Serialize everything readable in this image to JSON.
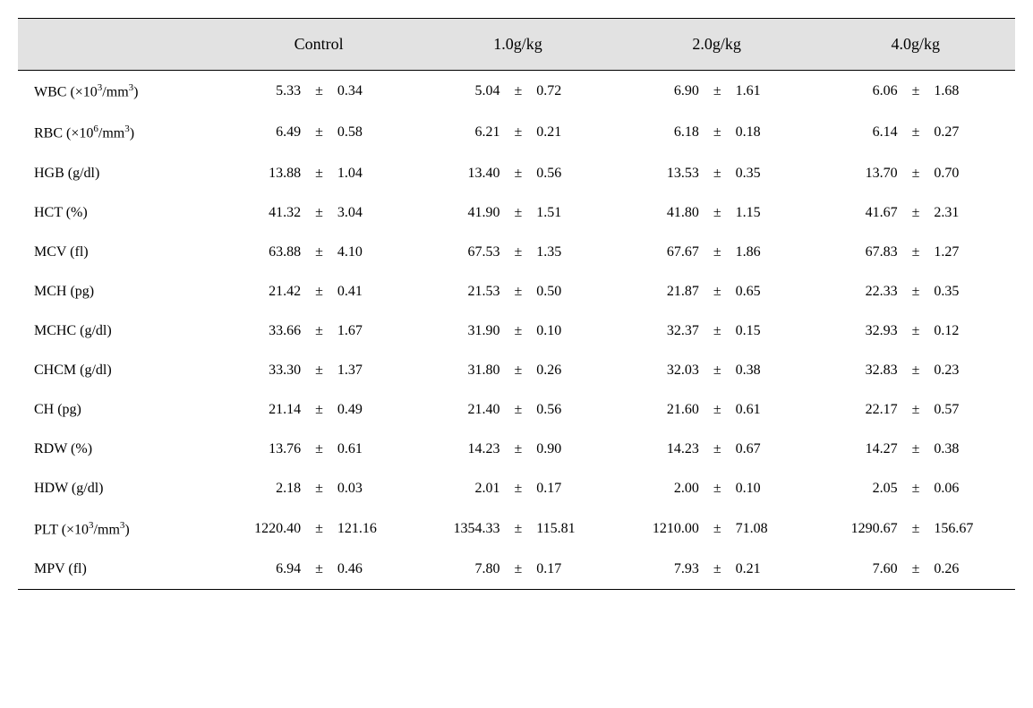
{
  "type": "table",
  "columns": [
    {
      "label": ""
    },
    {
      "label": "Control"
    },
    {
      "label": "1.0g/kg"
    },
    {
      "label": "2.0g/kg"
    },
    {
      "label": "4.0g/kg"
    }
  ],
  "header_bg": "#e2e2e2",
  "border_color": "#000000",
  "font_family": "Times New Roman",
  "body_fontsize": 16,
  "header_fontsize": 18,
  "pm_symbol": "±",
  "rows": [
    {
      "label": "WBC (×10<sup>3</sup>/mm<sup>3</sup>)",
      "c": [
        {
          "m": "5.33",
          "s": "0.34"
        },
        {
          "m": "5.04",
          "s": "0.72"
        },
        {
          "m": "6.90",
          "s": "1.61"
        },
        {
          "m": "6.06",
          "s": "1.68"
        }
      ]
    },
    {
      "label": "RBC (×10<sup>6</sup>/mm<sup>3</sup>)",
      "c": [
        {
          "m": "6.49",
          "s": "0.58"
        },
        {
          "m": "6.21",
          "s": "0.21"
        },
        {
          "m": "6.18",
          "s": "0.18"
        },
        {
          "m": "6.14",
          "s": "0.27"
        }
      ]
    },
    {
      "label": "HGB (g/dl)",
      "c": [
        {
          "m": "13.88",
          "s": "1.04"
        },
        {
          "m": "13.40",
          "s": "0.56"
        },
        {
          "m": "13.53",
          "s": "0.35"
        },
        {
          "m": "13.70",
          "s": "0.70"
        }
      ]
    },
    {
      "label": "HCT (%)",
      "c": [
        {
          "m": "41.32",
          "s": "3.04"
        },
        {
          "m": "41.90",
          "s": "1.51"
        },
        {
          "m": "41.80",
          "s": "1.15"
        },
        {
          "m": "41.67",
          "s": "2.31"
        }
      ]
    },
    {
      "label": "MCV (fl)",
      "c": [
        {
          "m": "63.88",
          "s": "4.10"
        },
        {
          "m": "67.53",
          "s": "1.35"
        },
        {
          "m": "67.67",
          "s": "1.86"
        },
        {
          "m": "67.83",
          "s": "1.27"
        }
      ]
    },
    {
      "label": "MCH (pg)",
      "c": [
        {
          "m": "21.42",
          "s": "0.41"
        },
        {
          "m": "21.53",
          "s": "0.50"
        },
        {
          "m": "21.87",
          "s": "0.65"
        },
        {
          "m": "22.33",
          "s": "0.35"
        }
      ]
    },
    {
      "label": "MCHC (g/dl)",
      "c": [
        {
          "m": "33.66",
          "s": "1.67"
        },
        {
          "m": "31.90",
          "s": "0.10"
        },
        {
          "m": "32.37",
          "s": "0.15"
        },
        {
          "m": "32.93",
          "s": "0.12"
        }
      ]
    },
    {
      "label": "CHCM (g/dl)",
      "c": [
        {
          "m": "33.30",
          "s": "1.37"
        },
        {
          "m": "31.80",
          "s": "0.26"
        },
        {
          "m": "32.03",
          "s": "0.38"
        },
        {
          "m": "32.83",
          "s": "0.23"
        }
      ]
    },
    {
      "label": "CH (pg)",
      "c": [
        {
          "m": "21.14",
          "s": "0.49"
        },
        {
          "m": "21.40",
          "s": "0.56"
        },
        {
          "m": "21.60",
          "s": "0.61"
        },
        {
          "m": "22.17",
          "s": "0.57"
        }
      ]
    },
    {
      "label": "RDW (%)",
      "c": [
        {
          "m": "13.76",
          "s": "0.61"
        },
        {
          "m": "14.23",
          "s": "0.90"
        },
        {
          "m": "14.23",
          "s": "0.67"
        },
        {
          "m": "14.27",
          "s": "0.38"
        }
      ]
    },
    {
      "label": "HDW (g/dl)",
      "c": [
        {
          "m": "2.18",
          "s": "0.03"
        },
        {
          "m": "2.01",
          "s": "0.17"
        },
        {
          "m": "2.00",
          "s": "0.10"
        },
        {
          "m": "2.05",
          "s": "0.06"
        }
      ]
    },
    {
      "label": "PLT (×10<sup>3</sup>/mm<sup>3</sup>)",
      "c": [
        {
          "m": "1220.40",
          "s": "121.16"
        },
        {
          "m": "1354.33",
          "s": "115.81"
        },
        {
          "m": "1210.00",
          "s": "71.08"
        },
        {
          "m": "1290.67",
          "s": "156.67"
        }
      ]
    },
    {
      "label": "MPV (fl)",
      "c": [
        {
          "m": "6.94",
          "s": "0.46"
        },
        {
          "m": "7.80",
          "s": "0.17"
        },
        {
          "m": "7.93",
          "s": "0.21"
        },
        {
          "m": "7.60",
          "s": "0.26"
        }
      ]
    }
  ]
}
